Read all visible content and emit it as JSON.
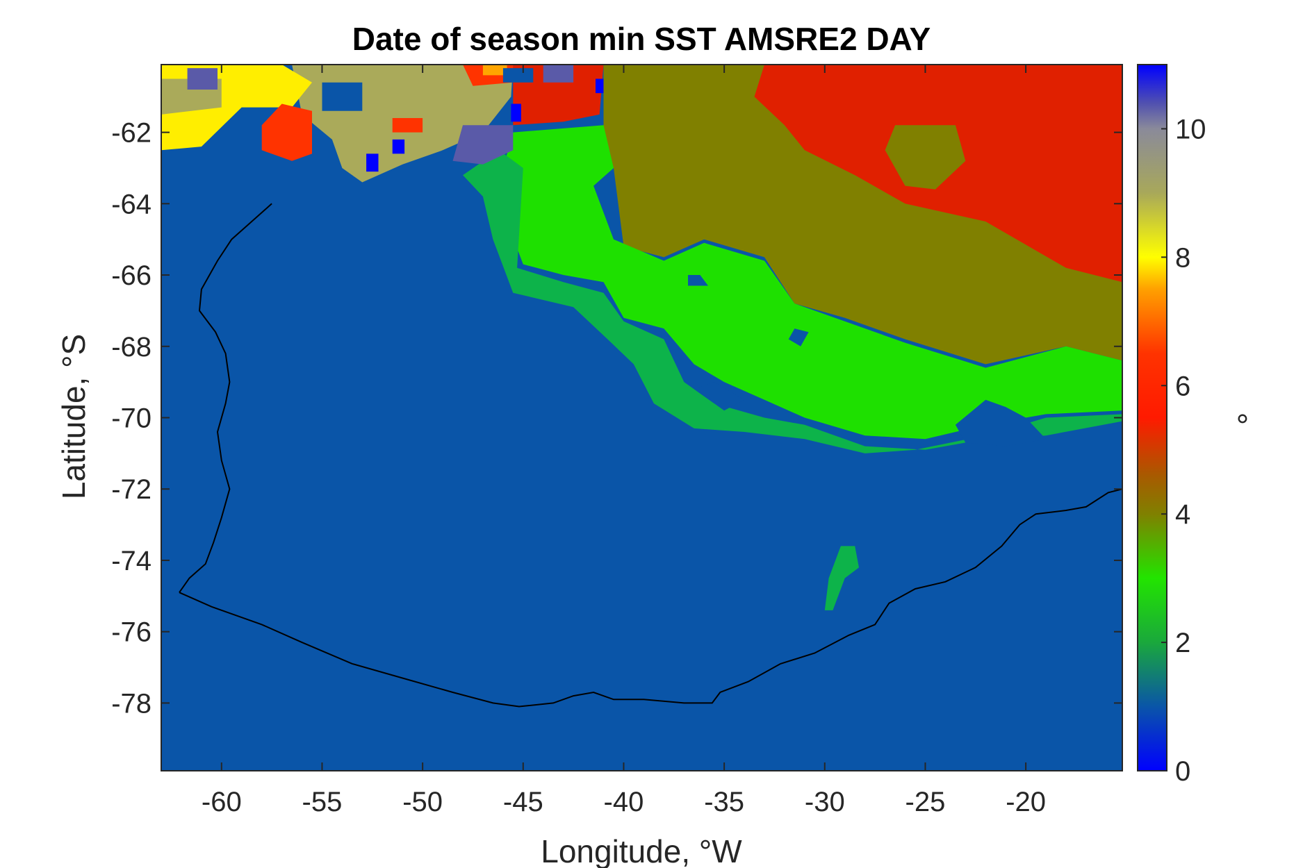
{
  "chart_data": {
    "type": "heatmap",
    "title": "Date of season min SST AMSRE2 DAY",
    "xlabel": "Longitude, °W",
    "ylabel": "Latitude, °S",
    "colorbar_label": "°",
    "xlim": [
      -63,
      -15.2
    ],
    "ylim": [
      -79.9,
      -60.1
    ],
    "x_ticks": [
      -60,
      -55,
      -50,
      -45,
      -40,
      -35,
      -30,
      -25,
      -20
    ],
    "y_ticks": [
      -62,
      -64,
      -66,
      -68,
      -70,
      -72,
      -74,
      -76,
      -78
    ],
    "colorbar_ticks": [
      0,
      2,
      4,
      6,
      8,
      10
    ],
    "clim": [
      0,
      11
    ],
    "grid": false,
    "colormap": [
      {
        "v": 0,
        "color": "#0000ff"
      },
      {
        "v": 1.0,
        "color": "#0a55a8"
      },
      {
        "v": 2.0,
        "color": "#1aa83c"
      },
      {
        "v": 3.0,
        "color": "#22e400"
      },
      {
        "v": 4.0,
        "color": "#808000"
      },
      {
        "v": 4.6,
        "color": "#a85a00"
      },
      {
        "v": 5.5,
        "color": "#ff1a00"
      },
      {
        "v": 6.5,
        "color": "#ff3300"
      },
      {
        "v": 7.5,
        "color": "#ffa000"
      },
      {
        "v": 8.0,
        "color": "#ffff00"
      },
      {
        "v": 9.0,
        "color": "#a8a85a"
      },
      {
        "v": 10.0,
        "color": "#8a8a9a"
      },
      {
        "v": 10.4,
        "color": "#5050b0"
      },
      {
        "v": 11,
        "color": "#0000ff"
      }
    ],
    "value_colors": {
      "1": "#0a55a8",
      "2": "#0db34a",
      "3": "#1ee000",
      "4": "#808000",
      "5": "#e02000",
      "6": "#ff3300",
      "7": "#ffa500",
      "8": "#ffee00",
      "9": "#aaaa5a",
      "10": "#5a5aa8",
      "0": "#0000ff"
    },
    "regions": [
      {
        "value": 1,
        "poly": [
          [
            -63,
            -79.9
          ],
          [
            -15.2,
            -79.9
          ],
          [
            -15.2,
            -60.1
          ],
          [
            -63,
            -60.1
          ]
        ]
      },
      {
        "value": 4,
        "poly": [
          [
            -41,
            -60.1
          ],
          [
            -15.2,
            -60.1
          ],
          [
            -15.2,
            -68.4
          ],
          [
            -18,
            -68
          ],
          [
            -22,
            -68.5
          ],
          [
            -26,
            -67.8
          ],
          [
            -29,
            -67.2
          ],
          [
            -31.5,
            -66.8
          ],
          [
            -33,
            -65.5
          ],
          [
            -36,
            -65
          ],
          [
            -38,
            -65.5
          ],
          [
            -40,
            -65.2
          ],
          [
            -40.5,
            -63
          ],
          [
            -41,
            -62
          ]
        ]
      },
      {
        "value": 5,
        "poly": [
          [
            -33,
            -60.1
          ],
          [
            -15.2,
            -60.1
          ],
          [
            -15.2,
            -66.2
          ],
          [
            -18,
            -65.8
          ],
          [
            -22,
            -64.5
          ],
          [
            -26,
            -64
          ],
          [
            -28.5,
            -63.2
          ],
          [
            -31,
            -62.5
          ],
          [
            -32,
            -61.8
          ],
          [
            -33.5,
            -61
          ]
        ]
      },
      {
        "value": 4,
        "poly": [
          [
            -26.5,
            -61.8
          ],
          [
            -23.5,
            -61.8
          ],
          [
            -23,
            -62.8
          ],
          [
            -24.5,
            -63.6
          ],
          [
            -26,
            -63.5
          ],
          [
            -27,
            -62.5
          ]
        ]
      },
      {
        "value": 3,
        "poly": [
          [
            -45.5,
            -62
          ],
          [
            -41,
            -61.8
          ],
          [
            -40.5,
            -63
          ],
          [
            -41.5,
            -63.5
          ],
          [
            -40.5,
            -65
          ],
          [
            -38,
            -65.6
          ],
          [
            -36,
            -65.1
          ],
          [
            -33,
            -65.6
          ],
          [
            -31.5,
            -66.8
          ],
          [
            -29,
            -67.3
          ],
          [
            -26,
            -67.9
          ],
          [
            -22,
            -68.6
          ],
          [
            -18,
            -68
          ],
          [
            -15.2,
            -68.4
          ],
          [
            -15.2,
            -69.8
          ],
          [
            -19,
            -69.9
          ],
          [
            -22,
            -70.2
          ],
          [
            -25,
            -70.6
          ],
          [
            -28,
            -70.5
          ],
          [
            -31,
            -70
          ],
          [
            -33,
            -69.5
          ],
          [
            -35,
            -69
          ],
          [
            -36.5,
            -68.5
          ],
          [
            -38,
            -67.5
          ],
          [
            -40,
            -67.2
          ],
          [
            -41,
            -66.2
          ],
          [
            -43,
            -66
          ],
          [
            -45,
            -65.7
          ],
          [
            -45.8,
            -64.5
          ],
          [
            -46,
            -63
          ]
        ]
      },
      {
        "value": 2,
        "poly": [
          [
            -48,
            -63.2
          ],
          [
            -46.2,
            -62.5
          ],
          [
            -45,
            -63
          ],
          [
            -45.3,
            -65.8
          ],
          [
            -43,
            -66.2
          ],
          [
            -41,
            -66.5
          ],
          [
            -40,
            -67.3
          ],
          [
            -38,
            -67.8
          ],
          [
            -37,
            -69
          ],
          [
            -35.5,
            -69.6
          ],
          [
            -33,
            -70
          ],
          [
            -31,
            -70.2
          ],
          [
            -28,
            -70.8
          ],
          [
            -25,
            -70.9
          ],
          [
            -22,
            -70.6
          ],
          [
            -19,
            -70.5
          ],
          [
            -15.2,
            -70.1
          ],
          [
            -15.2,
            -69.9
          ],
          [
            -19,
            -70
          ],
          [
            -22,
            -70.5
          ],
          [
            -25.5,
            -70.9
          ],
          [
            -28,
            -71
          ],
          [
            -31,
            -70.6
          ],
          [
            -34,
            -70.4
          ],
          [
            -36.5,
            -70.3
          ],
          [
            -38.5,
            -69.6
          ],
          [
            -39.5,
            -68.5
          ],
          [
            -40.8,
            -67.8
          ],
          [
            -42.5,
            -66.9
          ],
          [
            -45.5,
            -66.5
          ],
          [
            -46.5,
            -65
          ],
          [
            -47,
            -63.8
          ]
        ]
      },
      {
        "value": 2,
        "poly": [
          [
            -30,
            -75.4
          ],
          [
            -29.8,
            -74.5
          ],
          [
            -29.2,
            -73.6
          ],
          [
            -28.5,
            -73.6
          ],
          [
            -28.3,
            -74.2
          ],
          [
            -29,
            -74.5
          ],
          [
            -29.6,
            -75.4
          ]
        ]
      },
      {
        "value": 1,
        "poly": [
          [
            -23.5,
            -70.2
          ],
          [
            -22,
            -69.5
          ],
          [
            -21,
            -69.7
          ],
          [
            -20,
            -70
          ],
          [
            -19,
            -70.6
          ],
          [
            -21,
            -70.8
          ],
          [
            -23,
            -70.7
          ]
        ]
      },
      {
        "value": 1,
        "poly": [
          [
            -31.5,
            -67.5
          ],
          [
            -31.8,
            -67.8
          ],
          [
            -31.2,
            -68
          ],
          [
            -30.8,
            -67.6
          ]
        ]
      },
      {
        "value": 1,
        "poly": [
          [
            -36.5,
            -69.2
          ],
          [
            -35.5,
            -69
          ],
          [
            -34,
            -69.5
          ],
          [
            -35,
            -69.8
          ]
        ]
      },
      {
        "value": 1,
        "poly": [
          [
            -36.8,
            -66
          ],
          [
            -36.2,
            -66
          ],
          [
            -35.8,
            -66.3
          ],
          [
            -36.8,
            -66.3
          ]
        ]
      },
      {
        "value": 9,
        "poly": [
          [
            -56.5,
            -60.1
          ],
          [
            -45.5,
            -60.1
          ],
          [
            -45.6,
            -61
          ],
          [
            -47,
            -62
          ],
          [
            -49,
            -62.5
          ],
          [
            -51,
            -62.9
          ],
          [
            -53,
            -63.4
          ],
          [
            -54,
            -63
          ],
          [
            -54.5,
            -62.2
          ],
          [
            -56,
            -61.5
          ]
        ]
      },
      {
        "value": 8,
        "poly": [
          [
            -63,
            -60.1
          ],
          [
            -57,
            -60.1
          ],
          [
            -55.5,
            -60.6
          ],
          [
            -56.5,
            -61.3
          ],
          [
            -59,
            -61.3
          ],
          [
            -61,
            -62.4
          ],
          [
            -63,
            -62.5
          ]
        ]
      },
      {
        "value": 9,
        "poly": [
          [
            -63,
            -60.5
          ],
          [
            -60,
            -60.5
          ],
          [
            -60,
            -61.3
          ],
          [
            -63,
            -61.5
          ]
        ]
      },
      {
        "value": 6,
        "poly": [
          [
            -57,
            -61.2
          ],
          [
            -55.5,
            -61.4
          ],
          [
            -55.5,
            -62.6
          ],
          [
            -56.5,
            -62.8
          ],
          [
            -58,
            -62.5
          ],
          [
            -58,
            -61.8
          ]
        ]
      },
      {
        "value": 6,
        "poly": [
          [
            -51.5,
            -61.6
          ],
          [
            -50,
            -61.6
          ],
          [
            -50,
            -62
          ],
          [
            -51.5,
            -62
          ]
        ]
      },
      {
        "value": 6,
        "poly": [
          [
            -48,
            -60.1
          ],
          [
            -45.5,
            -60.1
          ],
          [
            -45.5,
            -60.6
          ],
          [
            -47.5,
            -60.7
          ]
        ]
      },
      {
        "value": 7,
        "poly": [
          [
            -47,
            -60.1
          ],
          [
            -45.8,
            -60.1
          ],
          [
            -45.8,
            -60.4
          ],
          [
            -47,
            -60.4
          ]
        ]
      },
      {
        "value": 5,
        "poly": [
          [
            -45.5,
            -60.1
          ],
          [
            -41,
            -60.1
          ],
          [
            -41.2,
            -61.5
          ],
          [
            -43,
            -61.7
          ],
          [
            -45.5,
            -61.8
          ]
        ]
      },
      {
        "value": 10,
        "poly": [
          [
            -61.7,
            -60.2
          ],
          [
            -60.2,
            -60.2
          ],
          [
            -60.2,
            -60.8
          ],
          [
            -61.7,
            -60.8
          ]
        ]
      },
      {
        "value": 10,
        "poly": [
          [
            -48,
            -61.8
          ],
          [
            -45.5,
            -61.8
          ],
          [
            -45.5,
            -62.5
          ],
          [
            -47,
            -62.9
          ],
          [
            -48.5,
            -62.8
          ]
        ]
      },
      {
        "value": 10,
        "poly": [
          [
            -44,
            -60.1
          ],
          [
            -42.5,
            -60.1
          ],
          [
            -42.5,
            -60.6
          ],
          [
            -44,
            -60.6
          ]
        ]
      },
      {
        "value": 1,
        "poly": [
          [
            -55,
            -60.6
          ],
          [
            -53,
            -60.6
          ],
          [
            -53,
            -61.4
          ],
          [
            -55,
            -61.4
          ]
        ]
      },
      {
        "value": 1,
        "poly": [
          [
            -46,
            -60.2
          ],
          [
            -44.5,
            -60.2
          ],
          [
            -44.5,
            -60.6
          ],
          [
            -46,
            -60.6
          ]
        ]
      },
      {
        "value": 0,
        "poly": [
          [
            -52.8,
            -62.6
          ],
          [
            -52.2,
            -62.6
          ],
          [
            -52.2,
            -63.1
          ],
          [
            -52.8,
            -63.1
          ]
        ]
      },
      {
        "value": 0,
        "poly": [
          [
            -51.5,
            -62.2
          ],
          [
            -50.9,
            -62.2
          ],
          [
            -50.9,
            -62.6
          ],
          [
            -51.5,
            -62.6
          ]
        ]
      },
      {
        "value": 0,
        "poly": [
          [
            -45.6,
            -61.2
          ],
          [
            -45.1,
            -61.2
          ],
          [
            -45.1,
            -61.7
          ],
          [
            -45.6,
            -61.7
          ]
        ]
      },
      {
        "value": 0,
        "poly": [
          [
            -41.4,
            -60.5
          ],
          [
            -41,
            -60.5
          ],
          [
            -41,
            -60.9
          ],
          [
            -41.4,
            -60.9
          ]
        ]
      }
    ],
    "coastline": [
      [
        -62.1,
        -74.9
      ],
      [
        -60.5,
        -75.3
      ],
      [
        -58,
        -75.8
      ],
      [
        -56,
        -76.3
      ],
      [
        -53.5,
        -76.9
      ],
      [
        -51,
        -77.3
      ],
      [
        -48.5,
        -77.7
      ],
      [
        -46.5,
        -78
      ],
      [
        -45.2,
        -78.1
      ],
      [
        -43.5,
        -78
      ],
      [
        -42.5,
        -77.8
      ],
      [
        -41.5,
        -77.7
      ],
      [
        -40.5,
        -77.9
      ],
      [
        -39,
        -77.9
      ],
      [
        -37,
        -78
      ],
      [
        -35.6,
        -78
      ],
      [
        -35.2,
        -77.7
      ],
      [
        -33.8,
        -77.4
      ],
      [
        -32.2,
        -76.9
      ],
      [
        -30.5,
        -76.6
      ],
      [
        -28.8,
        -76.1
      ],
      [
        -27.5,
        -75.8
      ],
      [
        -26.8,
        -75.2
      ],
      [
        -25.5,
        -74.8
      ],
      [
        -24,
        -74.6
      ],
      [
        -22.5,
        -74.2
      ],
      [
        -21.2,
        -73.6
      ],
      [
        -20.3,
        -73
      ],
      [
        -19.5,
        -72.7
      ],
      [
        -18,
        -72.6
      ],
      [
        -17,
        -72.5
      ],
      [
        -15.9,
        -72.1
      ],
      [
        -15.2,
        -72
      ]
    ],
    "west_coast": [
      [
        -62.1,
        -74.9
      ],
      [
        -61.6,
        -74.5
      ],
      [
        -60.8,
        -74.1
      ],
      [
        -60.4,
        -73.5
      ],
      [
        -60,
        -72.8
      ],
      [
        -59.6,
        -72
      ],
      [
        -60,
        -71.2
      ],
      [
        -60.2,
        -70.4
      ],
      [
        -59.8,
        -69.6
      ],
      [
        -59.6,
        -69
      ],
      [
        -59.8,
        -68.2
      ],
      [
        -60.3,
        -67.6
      ],
      [
        -61.1,
        -67
      ],
      [
        -61,
        -66.4
      ],
      [
        -60.2,
        -65.6
      ],
      [
        -59.5,
        -65
      ],
      [
        -58.5,
        -64.5
      ],
      [
        -57.5,
        -64
      ]
    ]
  }
}
